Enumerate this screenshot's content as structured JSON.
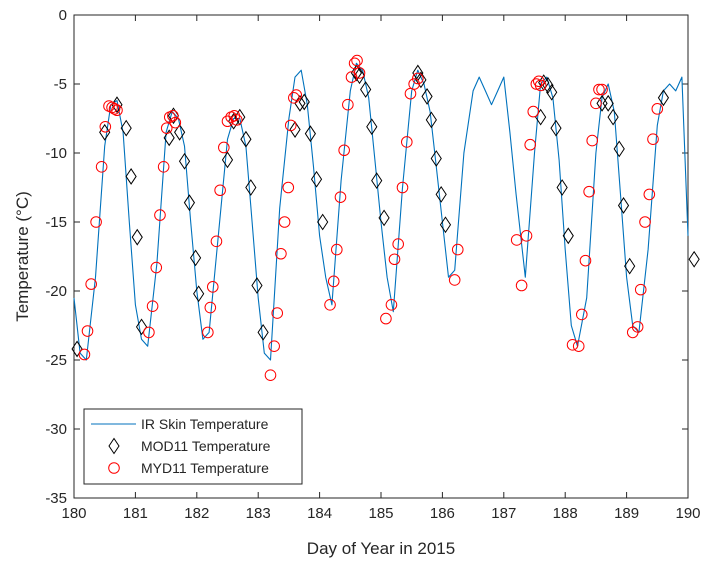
{
  "chart_data": {
    "type": "line",
    "title": "",
    "xlabel": "Day of Year in 2015",
    "ylabel": "Temperature (°C)",
    "xlim": [
      180,
      190
    ],
    "ylim": [
      -35,
      0
    ],
    "xticks": [
      180,
      181,
      182,
      183,
      184,
      185,
      186,
      187,
      188,
      189,
      190
    ],
    "yticks": [
      0,
      -5,
      -10,
      -15,
      -20,
      -25,
      -30,
      -35
    ],
    "grid": false,
    "legend_position": "bottom-left",
    "series": [
      {
        "name": "IR Skin Temperature",
        "type": "line",
        "color": "#0072BD",
        "x": [
          180.0,
          180.1,
          180.2,
          180.35,
          180.5,
          180.6,
          180.7,
          180.8,
          180.9,
          181.0,
          181.1,
          181.2,
          181.35,
          181.5,
          181.6,
          181.7,
          181.8,
          181.9,
          182.0,
          182.1,
          182.2,
          182.35,
          182.5,
          182.6,
          182.7,
          182.8,
          182.9,
          183.0,
          183.1,
          183.2,
          183.35,
          183.5,
          183.6,
          183.7,
          183.8,
          183.9,
          184.0,
          184.1,
          184.2,
          184.35,
          184.5,
          184.6,
          184.7,
          184.8,
          184.9,
          185.0,
          185.1,
          185.2,
          185.35,
          185.5,
          185.6,
          185.7,
          185.8,
          185.9,
          186.0,
          186.1,
          186.2,
          186.35,
          186.5,
          186.6,
          186.7,
          186.8,
          186.9,
          187.0,
          187.1,
          187.2,
          187.35,
          187.5,
          187.6,
          187.7,
          187.8,
          187.9,
          188.0,
          188.1,
          188.2,
          188.35,
          188.5,
          188.6,
          188.7,
          188.8,
          188.9,
          189.0,
          189.1,
          189.2,
          189.35,
          189.5,
          189.6,
          189.7,
          189.8,
          189.9,
          190.0
        ],
        "y": [
          -20.5,
          -24.5,
          -25.0,
          -19.0,
          -9.5,
          -6.5,
          -6.2,
          -8.5,
          -15.0,
          -21.0,
          -23.5,
          -24.0,
          -18.0,
          -8.5,
          -7.0,
          -7.5,
          -9.5,
          -15.0,
          -20.0,
          -23.5,
          -23.0,
          -16.0,
          -9.0,
          -7.5,
          -7.5,
          -9.5,
          -15.0,
          -20.5,
          -24.5,
          -25.0,
          -14.0,
          -7.5,
          -4.5,
          -4.0,
          -6.5,
          -11.0,
          -16.0,
          -19.0,
          -21.0,
          -12.0,
          -5.5,
          -3.5,
          -4.0,
          -6.0,
          -10.5,
          -15.0,
          -19.0,
          -21.5,
          -12.5,
          -5.5,
          -4.0,
          -5.0,
          -7.0,
          -11.0,
          -15.0,
          -19.0,
          -18.5,
          -10.0,
          -5.5,
          -4.5,
          -5.5,
          -6.5,
          -5.5,
          -4.5,
          -8.5,
          -13.0,
          -19.0,
          -10.0,
          -5.0,
          -4.5,
          -6.0,
          -10.5,
          -17.0,
          -22.5,
          -24.0,
          -20.5,
          -10.0,
          -6.0,
          -5.0,
          -7.0,
          -13.0,
          -19.0,
          -22.5,
          -23.0,
          -17.0,
          -8.0,
          -5.5,
          -5.0,
          -5.5,
          -4.5,
          -16.0
        ]
      },
      {
        "name": "MOD11 Temperature",
        "type": "scatter",
        "marker": "diamond",
        "color": "#000000",
        "x": [
          180.05,
          180.5,
          180.7,
          180.85,
          180.93,
          181.03,
          181.1,
          181.55,
          181.62,
          181.72,
          181.8,
          181.88,
          181.98,
          182.03,
          182.5,
          182.6,
          182.7,
          182.8,
          182.88,
          182.98,
          183.08,
          183.6,
          183.68,
          183.75,
          183.85,
          183.95,
          184.05,
          184.6,
          184.65,
          184.75,
          184.85,
          184.93,
          185.05,
          185.6,
          185.65,
          185.75,
          185.82,
          185.9,
          185.98,
          186.05,
          187.6,
          187.65,
          187.72,
          187.78,
          187.85,
          187.95,
          188.05,
          188.6,
          188.7,
          188.78,
          188.88,
          188.95,
          189.05,
          189.6,
          190.1
        ],
        "y": [
          -24.2,
          -8.5,
          -6.5,
          -8.2,
          -11.7,
          -16.1,
          -22.6,
          -8.9,
          -7.3,
          -8.5,
          -10.6,
          -13.6,
          -17.6,
          -20.2,
          -10.5,
          -7.7,
          -7.4,
          -9.0,
          -12.5,
          -19.6,
          -23.0,
          -8.3,
          -6.4,
          -6.3,
          -8.6,
          -11.9,
          -15.0,
          -4.2,
          -4.4,
          -5.4,
          -8.1,
          -12.0,
          -14.7,
          -4.2,
          -4.7,
          -5.9,
          -7.6,
          -10.4,
          -13.0,
          -15.2,
          -7.4,
          -4.9,
          -5.1,
          -5.6,
          -8.2,
          -12.5,
          -16.0,
          -6.4,
          -6.4,
          -7.4,
          -9.7,
          -13.8,
          -18.2,
          -6.0,
          -17.7
        ]
      },
      {
        "name": "MYD11 Temperature",
        "type": "scatter",
        "marker": "circle",
        "color": "#FF0000",
        "x": [
          180.17,
          180.22,
          180.28,
          180.36,
          180.45,
          180.51,
          180.57,
          180.62,
          180.66,
          180.7,
          181.22,
          181.28,
          181.34,
          181.4,
          181.46,
          181.51,
          181.56,
          181.61,
          181.65,
          182.18,
          182.22,
          182.26,
          182.32,
          182.38,
          182.44,
          182.5,
          182.56,
          182.61,
          182.65,
          183.2,
          183.26,
          183.31,
          183.37,
          183.43,
          183.49,
          183.53,
          183.58,
          183.62,
          184.17,
          184.23,
          184.28,
          184.34,
          184.4,
          184.46,
          184.52,
          184.57,
          184.61,
          184.65,
          185.08,
          185.17,
          185.22,
          185.28,
          185.35,
          185.42,
          185.48,
          185.54,
          185.6,
          186.2,
          186.25,
          187.21,
          187.29,
          187.37,
          187.43,
          187.48,
          187.53,
          187.57,
          187.6,
          188.12,
          188.22,
          188.27,
          188.33,
          188.39,
          188.44,
          188.5,
          188.55,
          188.6,
          189.1,
          189.18,
          189.23,
          189.3,
          189.37,
          189.43,
          189.5
        ],
        "y": [
          -24.6,
          -22.9,
          -19.5,
          -15.0,
          -11.0,
          -8.1,
          -6.6,
          -6.7,
          -6.8,
          -6.9,
          -23.0,
          -21.1,
          -18.3,
          -14.5,
          -11.0,
          -8.2,
          -7.4,
          -7.3,
          -7.8,
          -23.0,
          -21.2,
          -19.7,
          -16.4,
          -12.7,
          -9.6,
          -7.7,
          -7.4,
          -7.3,
          -7.6,
          -26.1,
          -24.0,
          -21.6,
          -17.3,
          -15.0,
          -12.5,
          -8.0,
          -6.0,
          -5.8,
          -21.0,
          -19.3,
          -17.0,
          -13.2,
          -9.8,
          -6.5,
          -4.5,
          -3.5,
          -3.3,
          -4.2,
          -22.0,
          -21.0,
          -17.7,
          -16.6,
          -12.5,
          -9.2,
          -5.7,
          -5.0,
          -4.6,
          -19.2,
          -17.0,
          -16.3,
          -19.6,
          -16.0,
          -9.4,
          -7.0,
          -5.0,
          -4.8,
          -5.1,
          -23.9,
          -24.0,
          -21.7,
          -17.8,
          -12.8,
          -9.1,
          -6.4,
          -5.4,
          -5.4,
          -23.0,
          -22.6,
          -19.9,
          -15.0,
          -13.0,
          -9.0,
          -6.8
        ]
      }
    ]
  }
}
